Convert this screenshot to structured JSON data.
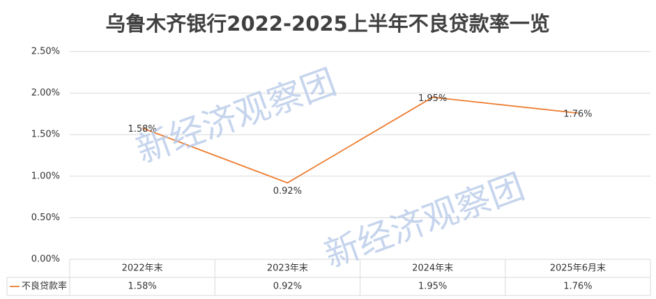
{
  "chart_data": {
    "type": "line",
    "title": "乌鲁木齐银行2022-2025上半年不良贷款率一览",
    "watermark": "新经济观察团",
    "categories": [
      "2022年末",
      "2023年末",
      "2024年末",
      "2025年6月末"
    ],
    "series": [
      {
        "name": "不良贷款率",
        "color": "#ed7d31",
        "values": [
          1.58,
          0.92,
          1.95,
          1.76
        ],
        "value_labels": [
          "1.58%",
          "0.92%",
          "1.95%",
          "1.76%"
        ]
      }
    ],
    "ylim": [
      0,
      2.5
    ],
    "yticks": [
      {
        "value": 0,
        "label": "0.00%"
      },
      {
        "value": 0.5,
        "label": "0.50%"
      },
      {
        "value": 1,
        "label": "1.00%"
      },
      {
        "value": 1.5,
        "label": "1.50%"
      },
      {
        "value": 2,
        "label": "2.00%"
      },
      {
        "value": 2.5,
        "label": "2.50%"
      }
    ],
    "grid": true
  }
}
